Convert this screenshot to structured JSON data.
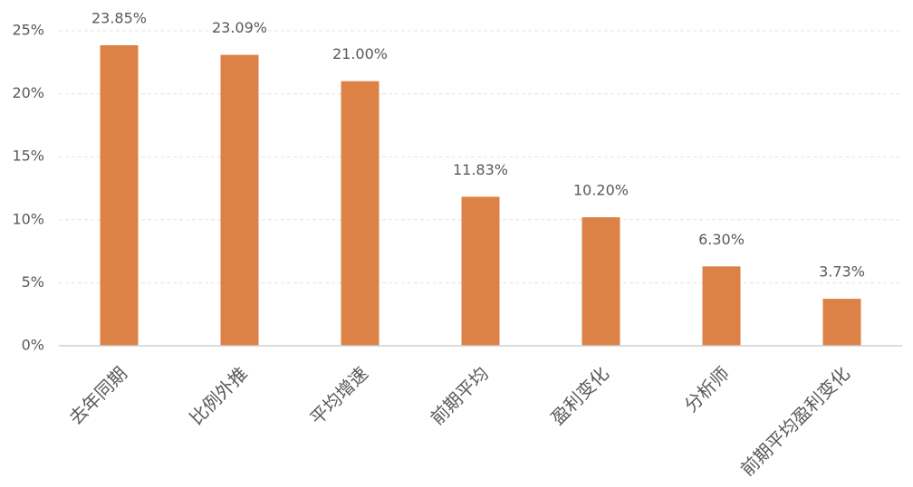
{
  "chart_data": {
    "type": "bar",
    "categories": [
      "去年同期",
      "比例外推",
      "平均增速",
      "前期平均",
      "盈利变化",
      "分析师",
      "前期平均盈利变化"
    ],
    "values": [
      23.85,
      23.09,
      21.0,
      11.83,
      10.2,
      6.3,
      3.73
    ],
    "value_labels": [
      "23.85%",
      "23.09%",
      "21.00%",
      "11.83%",
      "10.20%",
      "6.30%",
      "3.73%"
    ],
    "color": "#dd8246",
    "ylim": [
      0,
      25
    ],
    "yticks": [
      {
        "value": 0,
        "label": "0%"
      },
      {
        "value": 5,
        "label": "5%"
      },
      {
        "value": 10,
        "label": "10%"
      },
      {
        "value": 15,
        "label": "15%"
      },
      {
        "value": 20,
        "label": "20%"
      },
      {
        "value": 25,
        "label": "25%"
      }
    ],
    "grid": true
  }
}
